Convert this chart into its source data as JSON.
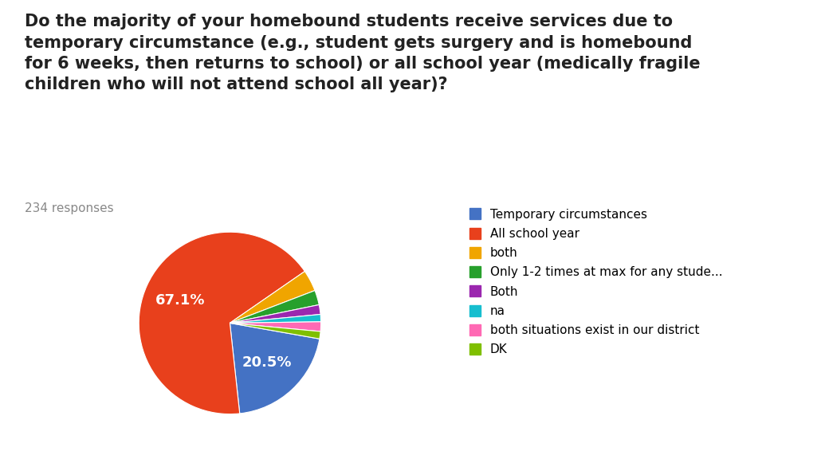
{
  "title": "Do the majority of your homebound students receive services due to\ntemporary circumstance (e.g., student gets surgery and is homebound\nfor 6 weeks, then returns to school) or all school year (medically fragile\nchildren who will not attend school all year)?",
  "subtitle": "234 responses",
  "slices": [
    {
      "label": "Temporary circumstances",
      "value": 20.5,
      "color": "#4472C4"
    },
    {
      "label": "All school year",
      "value": 67.1,
      "color": "#E8401C"
    },
    {
      "label": "both",
      "value": 3.8,
      "color": "#F0A500"
    },
    {
      "label": "Only 1-2 times at max for any stude...",
      "value": 2.6,
      "color": "#27A02C"
    },
    {
      "label": "Both",
      "value": 1.7,
      "color": "#9B27AF"
    },
    {
      "label": "na",
      "value": 1.3,
      "color": "#17BECF"
    },
    {
      "label": "both situations exist in our district",
      "value": 1.7,
      "color": "#FF69B4"
    },
    {
      "label": "DK",
      "value": 1.3,
      "color": "#7FBF00"
    }
  ],
  "background_color": "#FFFFFF",
  "text_color": "#222222",
  "subtitle_color": "#888888",
  "title_fontsize": 15,
  "subtitle_fontsize": 11,
  "legend_fontsize": 11,
  "pct_fontsize": 13
}
